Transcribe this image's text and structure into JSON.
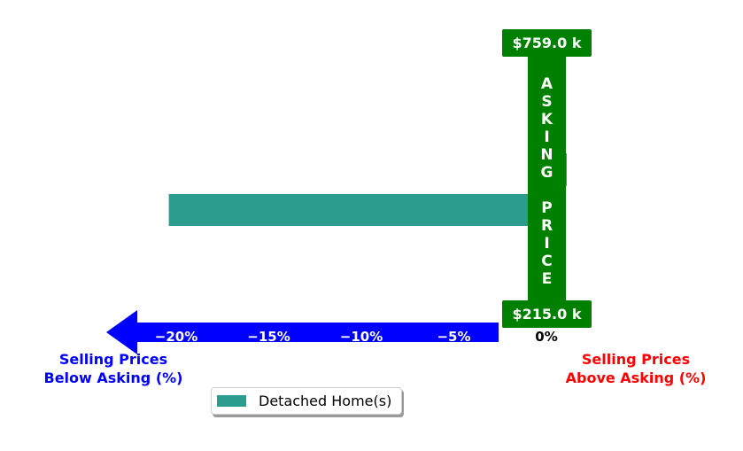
{
  "chart_data": {
    "type": "bar",
    "orientation": "horizontal",
    "series": [
      {
        "name": "Detached Home(s)",
        "color": "#2a9d8f",
        "values": [
          -20.4,
          1.1
        ]
      }
    ],
    "xticks": [
      -20,
      -15,
      -10,
      -5,
      0
    ],
    "xtick_labels": [
      "−20%",
      "−15%",
      "−10%",
      "−5%",
      "0%"
    ],
    "xlim": [
      -24,
      10
    ],
    "asking_price": {
      "label": "ASKING PRICE",
      "high": "$759.0 k",
      "low": "$215.0 k",
      "color": "#008000"
    },
    "below_label": "Selling Prices\nBelow Asking (%)",
    "above_label": "Selling Prices\nAbove Asking (%)",
    "below_color": "#0000ff",
    "above_color": "#ff0000",
    "legend_position": "lower-left"
  },
  "legend": {
    "label": "Detached Home(s)"
  }
}
